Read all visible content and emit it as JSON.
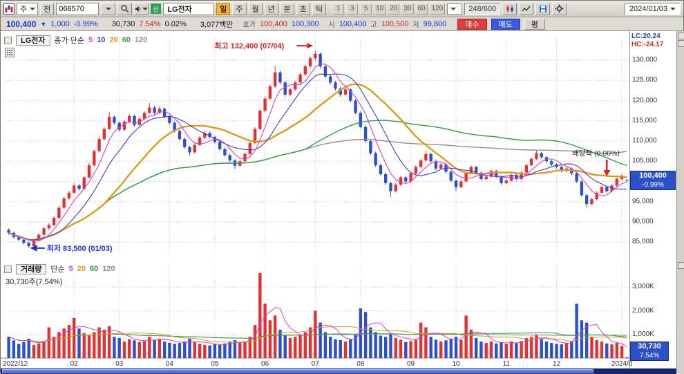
{
  "toolbar": {
    "period_combo": "주",
    "jun_button": "전",
    "stock_code": "066570",
    "stock_flag": "신",
    "stock_name": "LG전자",
    "timeframes": [
      "일",
      "주",
      "월",
      "년",
      "분",
      "초",
      "틱"
    ],
    "active_timeframe": "일",
    "intervals": [
      "1",
      "3",
      "5",
      "10",
      "20",
      "30",
      "60",
      "120"
    ],
    "bar_counter": "248/600",
    "date": "2024/01/03"
  },
  "quote": {
    "price": "100,400",
    "down_arrow": "▼",
    "change": "1,000",
    "change_pct": "-0.99%",
    "volume": "30,730",
    "volume_ratio": "7.54%",
    "turnover_pct": "0.02%",
    "value": "3,077백만",
    "hoga_label": "호가",
    "ask": "100,400",
    "bid": "100,300",
    "open_label": "시",
    "open": "100,400",
    "high_label": "고",
    "high": "100,500",
    "low_label": "저",
    "low": "99,800",
    "buy_label": "매수",
    "sell_label": "매도",
    "avg_label": "평"
  },
  "price_pane": {
    "legend": {
      "title": "LG전자",
      "series_label": "종가 단순",
      "ma": [
        "5",
        "10",
        "20",
        "60",
        "120"
      ]
    },
    "lc": "LC:20.24",
    "hc": "HC:-24.17",
    "badge_price": "100,400",
    "badge_pct": "-0.99%"
  },
  "volume_pane": {
    "legend": {
      "title": "거래량",
      "series_label": "단순",
      "ma": [
        "5",
        "20",
        "60",
        "120"
      ]
    },
    "current_label": "30,730주(7.54%)",
    "badge_value": "30,730",
    "badge_pct": "7.54%"
  },
  "colors": {
    "up": "#e03232",
    "down": "#2b50c8",
    "ma5": "#d83cd8",
    "ma10": "#3b3bd0",
    "ma20": "#dd9c14",
    "ma60": "#2ba03c",
    "ma120": "#8f8f8f",
    "grid": "#c9c9c9",
    "high_annotation": "#e02020",
    "low_annotation": "#2233cc",
    "badge_bg": "#2b50c8",
    "scrollbar": "#16246e"
  },
  "chart_data": {
    "type": "candlestick+volume",
    "symbol": "066570 LG전자",
    "timeframe": "일봉",
    "visible_range": "2022/12 ~ 2024/01/03",
    "y_axis": {
      "min": 82800,
      "max": 135500,
      "ticks": [
        85000,
        90000,
        95000,
        100000,
        105000,
        110000,
        115000,
        120000,
        125000,
        130000
      ],
      "unit": "KRW"
    },
    "volume_axis": {
      "max": 3800,
      "ticks": [
        1000,
        2000,
        3000
      ],
      "unit": "K"
    },
    "x_ticks": [
      {
        "i": 0,
        "label": "2022/12"
      },
      {
        "i": 13,
        "label": "02"
      },
      {
        "i": 22,
        "label": "03"
      },
      {
        "i": 32,
        "label": "04"
      },
      {
        "i": 41,
        "label": "05"
      },
      {
        "i": 51,
        "label": "06"
      },
      {
        "i": 61,
        "label": "07"
      },
      {
        "i": 70,
        "label": "08"
      },
      {
        "i": 80,
        "label": "09"
      },
      {
        "i": 89,
        "label": "10"
      },
      {
        "i": 99,
        "label": "11"
      },
      {
        "i": 109,
        "label": "12"
      },
      {
        "i": 122,
        "label": "2024/0"
      }
    ],
    "ma_periods": {
      "price": [
        5,
        10,
        20,
        60,
        120
      ],
      "volume": [
        5,
        20,
        60,
        120
      ]
    },
    "annotations": {
      "high": {
        "index": 61,
        "price": 132400,
        "text": "최고 132,400 (07/04)"
      },
      "low": {
        "index": 4,
        "price": 83500,
        "text": "최저 83,500 (01/03)"
      },
      "dividend": {
        "index": 119,
        "text": "배당락 (0.00%)"
      }
    },
    "last": {
      "close": 100400,
      "change": -1000,
      "change_pct": -0.99,
      "volume_shares": 30730
    },
    "candles_format": [
      "open",
      "high",
      "low",
      "close",
      "volume_K"
    ],
    "candles": [
      [
        88000,
        88400,
        86800,
        87300,
        900
      ],
      [
        87300,
        87600,
        85800,
        86200,
        750
      ],
      [
        86200,
        86600,
        85200,
        85600,
        600
      ],
      [
        85600,
        85900,
        84400,
        84800,
        680
      ],
      [
        84800,
        85100,
        83500,
        84000,
        820
      ],
      [
        84000,
        85800,
        83800,
        85400,
        560
      ],
      [
        85400,
        87200,
        85200,
        86800,
        620
      ],
      [
        86800,
        88800,
        86500,
        88400,
        700
      ],
      [
        88400,
        89700,
        87900,
        89200,
        1300
      ],
      [
        89200,
        91400,
        88900,
        91000,
        900
      ],
      [
        91000,
        93900,
        90700,
        93500,
        1100
      ],
      [
        93500,
        96200,
        93200,
        95800,
        1250
      ],
      [
        95800,
        97700,
        95400,
        97200,
        1400
      ],
      [
        97200,
        99500,
        96900,
        99000,
        1700
      ],
      [
        99000,
        99400,
        97700,
        98200,
        1250
      ],
      [
        98200,
        101400,
        97900,
        101000,
        1050
      ],
      [
        101000,
        104500,
        100700,
        104000,
        950
      ],
      [
        104000,
        107900,
        103600,
        107500,
        1100
      ],
      [
        107500,
        111000,
        107200,
        110500,
        1300
      ],
      [
        110500,
        113500,
        110100,
        113000,
        1200
      ],
      [
        113000,
        117200,
        112700,
        116000,
        1350
      ],
      [
        116000,
        116400,
        114000,
        114500,
        900
      ],
      [
        114500,
        114900,
        112300,
        112800,
        850
      ],
      [
        112800,
        115200,
        112500,
        114800,
        700
      ],
      [
        114800,
        116700,
        114400,
        116200,
        800
      ],
      [
        116200,
        116600,
        113600,
        114000,
        750
      ],
      [
        114000,
        115900,
        113700,
        115500,
        680
      ],
      [
        115500,
        117400,
        115100,
        117000,
        720
      ],
      [
        117000,
        119400,
        116700,
        118300,
        900
      ],
      [
        118300,
        118700,
        116500,
        117000,
        760
      ],
      [
        117000,
        118500,
        116700,
        118000,
        820
      ],
      [
        118000,
        118300,
        115600,
        116000,
        700
      ],
      [
        116000,
        116400,
        114100,
        114500,
        650
      ],
      [
        114500,
        114900,
        112100,
        112500,
        600
      ],
      [
        112500,
        112900,
        110100,
        110500,
        640
      ],
      [
        110500,
        110900,
        108100,
        108500,
        700
      ],
      [
        108500,
        108800,
        106400,
        107200,
        820
      ],
      [
        107200,
        109400,
        106900,
        109000,
        680
      ],
      [
        109000,
        111200,
        108700,
        110800,
        600
      ],
      [
        110800,
        112500,
        110400,
        112000,
        560
      ],
      [
        112000,
        112400,
        110600,
        111000,
        540
      ],
      [
        111000,
        111300,
        109400,
        109800,
        600
      ],
      [
        109800,
        110100,
        107600,
        108000,
        560
      ],
      [
        108000,
        108400,
        106100,
        106500,
        620
      ],
      [
        106500,
        106900,
        104800,
        105200,
        700
      ],
      [
        105200,
        105500,
        103100,
        103900,
        760
      ],
      [
        103900,
        105400,
        103600,
        105000,
        640
      ],
      [
        105000,
        107200,
        104700,
        106800,
        700
      ],
      [
        106800,
        109900,
        106500,
        109500,
        900
      ],
      [
        109500,
        113400,
        109200,
        113000,
        1400
      ],
      [
        113000,
        117900,
        112700,
        117500,
        3600
      ],
      [
        117500,
        121000,
        117100,
        120500,
        2300
      ],
      [
        120500,
        123900,
        120100,
        123500,
        1600
      ],
      [
        123500,
        128600,
        123100,
        127000,
        1800
      ],
      [
        127000,
        127400,
        124000,
        124500,
        1200
      ],
      [
        124500,
        124900,
        121000,
        121500,
        950
      ],
      [
        121500,
        123200,
        121100,
        122800,
        850
      ],
      [
        122800,
        124900,
        122400,
        124500,
        900
      ],
      [
        124500,
        126900,
        124100,
        126500,
        1000
      ],
      [
        126500,
        128900,
        126100,
        128500,
        1100
      ],
      [
        128500,
        130900,
        128100,
        130500,
        1300
      ],
      [
        130500,
        132400,
        129900,
        131600,
        2000
      ],
      [
        131600,
        131900,
        128000,
        128500,
        1500
      ],
      [
        128500,
        128900,
        125500,
        126000,
        1100
      ],
      [
        126000,
        126400,
        124000,
        124500,
        900
      ],
      [
        124500,
        124900,
        122500,
        123000,
        800
      ],
      [
        123000,
        123400,
        121000,
        121500,
        760
      ],
      [
        121500,
        123200,
        121200,
        122800,
        700
      ],
      [
        122800,
        123100,
        119600,
        120000,
        820
      ],
      [
        120000,
        120400,
        116600,
        117000,
        1000
      ],
      [
        117000,
        117400,
        113100,
        113500,
        2100
      ],
      [
        113500,
        113900,
        109600,
        110000,
        1950
      ],
      [
        110000,
        110400,
        106600,
        107000,
        1300
      ],
      [
        107000,
        107400,
        103600,
        104000,
        1100
      ],
      [
        104000,
        104400,
        101400,
        101800,
        950
      ],
      [
        101800,
        102200,
        99200,
        99600,
        900
      ],
      [
        99600,
        99900,
        96200,
        97600,
        1000
      ],
      [
        97600,
        99600,
        97300,
        99200,
        850
      ],
      [
        99200,
        101400,
        98900,
        101000,
        780
      ],
      [
        101000,
        101400,
        99600,
        100000,
        680
      ],
      [
        100000,
        102400,
        99700,
        102000,
        720
      ],
      [
        102000,
        104000,
        101700,
        103600,
        800
      ],
      [
        103600,
        105600,
        103300,
        105200,
        1500
      ],
      [
        105200,
        107600,
        104900,
        106800,
        1300
      ],
      [
        106800,
        107100,
        104600,
        105000,
        900
      ],
      [
        105000,
        105400,
        102800,
        103200,
        780
      ],
      [
        103200,
        104600,
        102900,
        104200,
        700
      ],
      [
        104200,
        104500,
        102000,
        102400,
        750
      ],
      [
        102400,
        102700,
        99800,
        100200,
        820
      ],
      [
        100200,
        100500,
        97600,
        98600,
        900
      ],
      [
        98600,
        100400,
        98300,
        100000,
        760
      ],
      [
        100000,
        102400,
        99700,
        102000,
        1800
      ],
      [
        102000,
        104000,
        101700,
        103600,
        1200
      ],
      [
        103600,
        103900,
        101800,
        102200,
        850
      ],
      [
        102200,
        102500,
        100200,
        100600,
        700
      ],
      [
        100600,
        101600,
        100300,
        101200,
        640
      ],
      [
        101200,
        103000,
        100900,
        102600,
        700
      ],
      [
        102600,
        102900,
        100800,
        101200,
        620
      ],
      [
        101200,
        101500,
        99200,
        99600,
        660
      ],
      [
        99600,
        100600,
        99300,
        100200,
        600
      ],
      [
        100200,
        102000,
        99900,
        101600,
        700
      ],
      [
        101600,
        101900,
        100200,
        100600,
        640
      ],
      [
        100600,
        102600,
        100300,
        102200,
        720
      ],
      [
        102200,
        104400,
        101900,
        104000,
        850
      ],
      [
        104000,
        106000,
        103700,
        105600,
        900
      ],
      [
        105600,
        107600,
        105300,
        107000,
        1000
      ],
      [
        107000,
        107300,
        105600,
        106000,
        800
      ],
      [
        106000,
        106300,
        104600,
        105000,
        700
      ],
      [
        105000,
        105400,
        103800,
        104200,
        640
      ],
      [
        104200,
        104500,
        103200,
        103600,
        600
      ],
      [
        103600,
        103900,
        102200,
        102600,
        580
      ],
      [
        102600,
        103600,
        102300,
        103200,
        640
      ],
      [
        103200,
        103500,
        101600,
        102000,
        700
      ],
      [
        102000,
        102300,
        99600,
        100000,
        2300
      ],
      [
        100000,
        100300,
        96200,
        96600,
        1600
      ],
      [
        96600,
        96900,
        93600,
        94400,
        1500
      ],
      [
        94400,
        96000,
        94100,
        95600,
        900
      ],
      [
        95600,
        97600,
        95300,
        97200,
        760
      ],
      [
        97200,
        99000,
        96900,
        98600,
        700
      ],
      [
        98600,
        98900,
        97200,
        97600,
        620
      ],
      [
        97600,
        99400,
        97300,
        99000,
        580
      ],
      [
        99000,
        101000,
        98700,
        100600,
        640
      ],
      [
        100600,
        101800,
        100300,
        101400,
        520
      ],
      [
        100400,
        100500,
        99800,
        100400,
        31
      ]
    ]
  }
}
